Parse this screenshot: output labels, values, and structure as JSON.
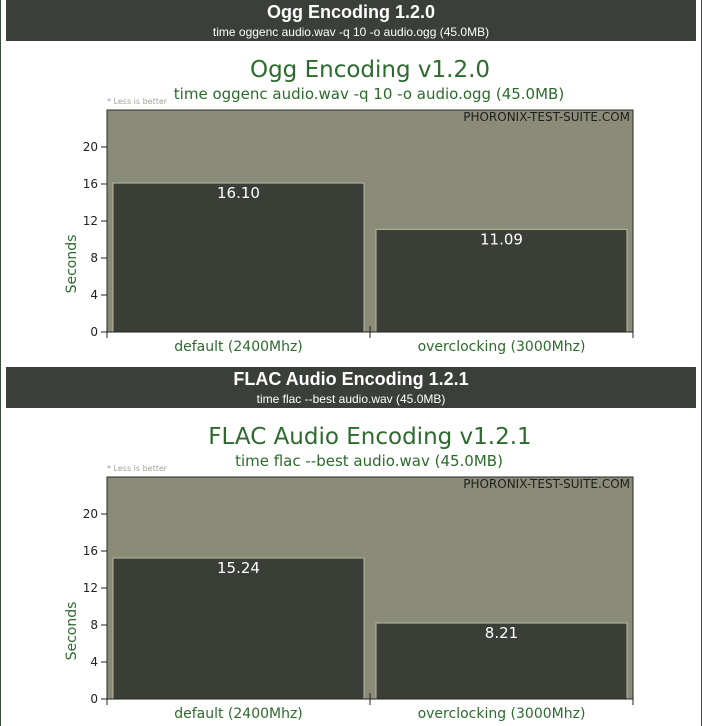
{
  "chart_data": [
    {
      "type": "bar",
      "banner_title": "Ogg Encoding 1.2.0",
      "banner_subtitle": "time oggenc audio.wav -q 10 -o audio.ogg (45.0MB)",
      "title": "Ogg Encoding v1.2.0",
      "subtitle": "time oggenc audio.wav -q 10 -o audio.ogg (45.0MB)",
      "note": "* Less is better",
      "watermark": "PHORONIX-TEST-SUITE.COM",
      "xlabel": "",
      "ylabel": "Seconds",
      "ylim": [
        0,
        24
      ],
      "yticks": [
        0,
        4,
        8,
        12,
        16,
        20
      ],
      "categories": [
        "default (2400Mhz)",
        "overclocking (3000Mhz)"
      ],
      "values": [
        16.1,
        11.09
      ],
      "value_labels": [
        "16.10",
        "11.09"
      ],
      "grid": false
    },
    {
      "type": "bar",
      "banner_title": "FLAC Audio Encoding 1.2.1",
      "banner_subtitle": "time flac --best audio.wav (45.0MB)",
      "title": "FLAC Audio Encoding v1.2.1",
      "subtitle": "time flac --best audio.wav (45.0MB)",
      "note": "* Less is better",
      "watermark": "PHORONIX-TEST-SUITE.COM",
      "xlabel": "",
      "ylabel": "Seconds",
      "ylim": [
        0,
        24
      ],
      "yticks": [
        0,
        4,
        8,
        12,
        16,
        20
      ],
      "categories": [
        "default (2400Mhz)",
        "overclocking (3000Mhz)"
      ],
      "values": [
        15.24,
        8.21
      ],
      "value_labels": [
        "15.24",
        "8.21"
      ],
      "grid": false
    }
  ],
  "colors": {
    "banner_bg": "#3b3f39",
    "plot_bg": "#8b8c77",
    "bar_fill": "#3a3e37",
    "bar_edge": "#b8b9a6",
    "title_text": "#2d6a2d"
  }
}
